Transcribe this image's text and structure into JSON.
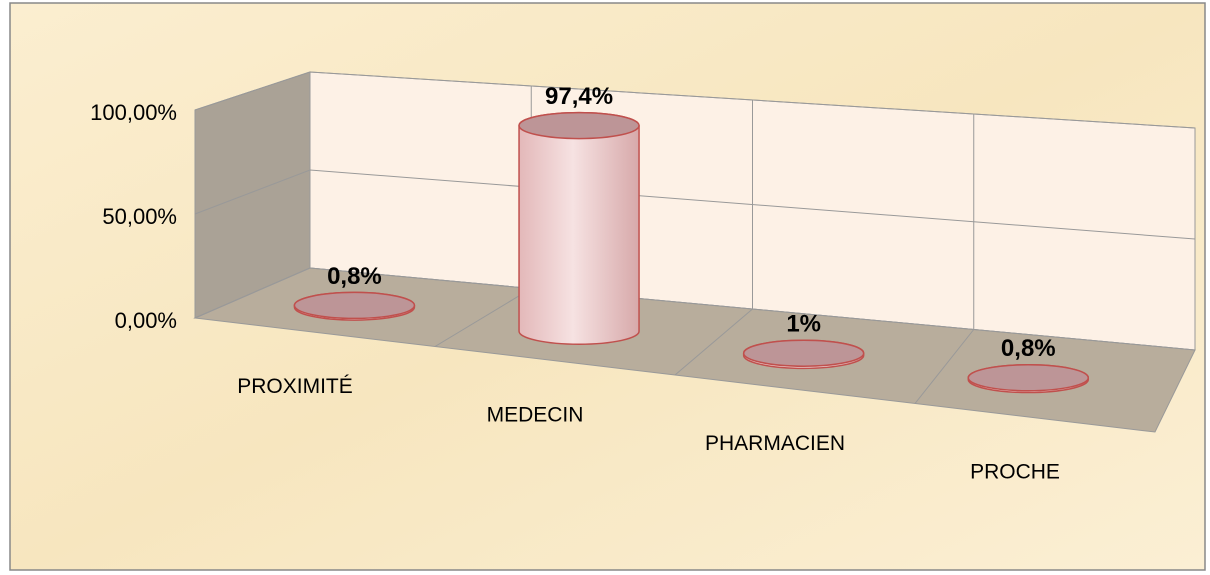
{
  "chart_data": {
    "type": "cylinder3d",
    "categories": [
      "PROXIMITÉ",
      "MEDECIN",
      "PHARMACIEN",
      "PROCHE"
    ],
    "values": [
      0.8,
      97.4,
      1,
      0.8
    ],
    "value_labels": [
      "0,8%",
      "97,4%",
      "1%",
      "0,8%"
    ],
    "color": "#e9c6c6",
    "ylim": [
      0,
      100
    ],
    "yticks": [
      {
        "value": 0,
        "label": "0,00%"
      },
      {
        "value": 50,
        "label": "50,00%"
      },
      {
        "value": 100,
        "label": "100,00%"
      }
    ],
    "grid": true
  }
}
